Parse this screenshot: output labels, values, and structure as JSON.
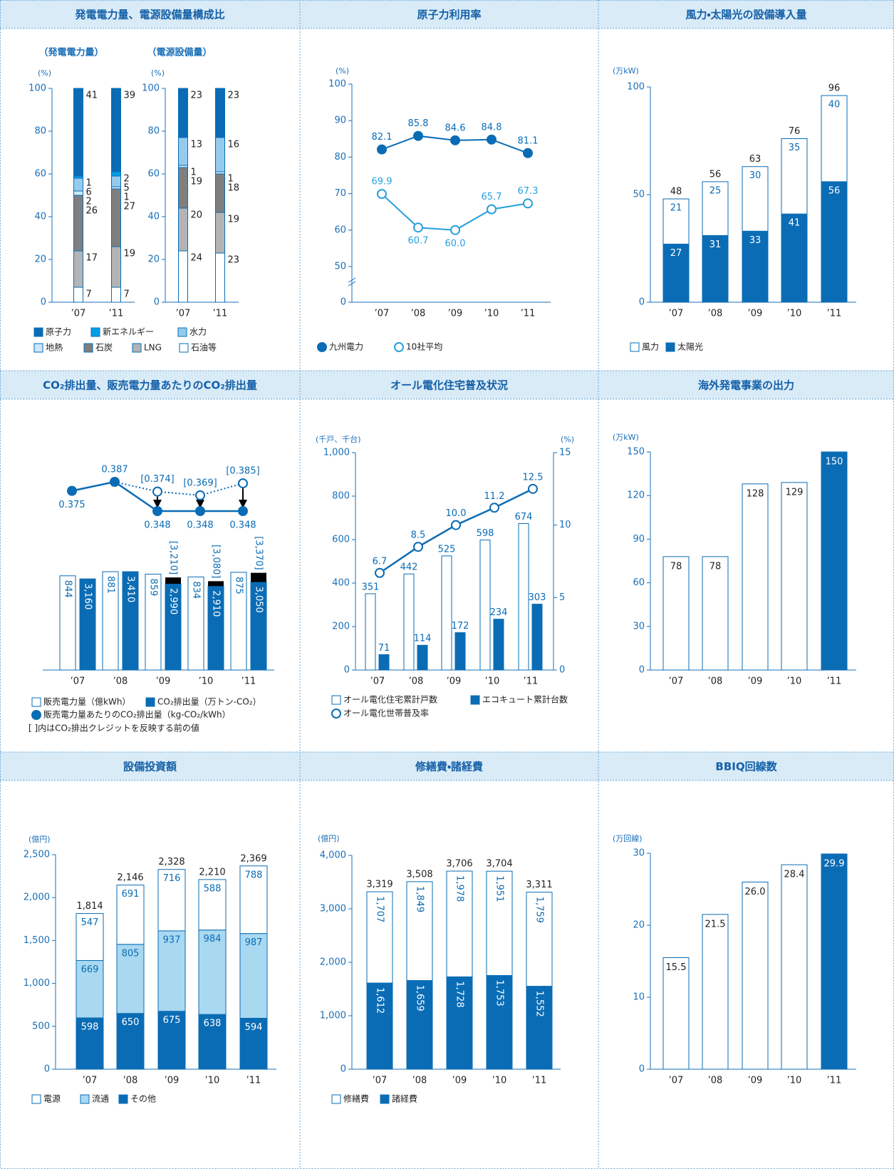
{
  "chart_data": [
    {
      "type": "stacked_bar",
      "title": "発電電力量、電源設備量構成比",
      "y_unit": "(%)",
      "ylim": [
        0,
        100
      ],
      "yticks": [
        0,
        20,
        40,
        60,
        80,
        100
      ],
      "series": [
        {
          "name": "原子力",
          "color": "#0a6cb5"
        },
        {
          "name": "新エネルギー",
          "color": "#009fe8"
        },
        {
          "name": "水力",
          "color": "#94cbed"
        },
        {
          "name": "地熱",
          "color": "#cfe6f6"
        },
        {
          "name": "石炭",
          "color": "#7f7f7f"
        },
        {
          "name": "LNG",
          "color": "#b4b4b4"
        },
        {
          "name": "石油等",
          "color": "#ffffff"
        }
      ],
      "groups": [
        {
          "label": "（発電電力量）",
          "categories": [
            "’07",
            "’11"
          ],
          "values": [
            [
              41,
              39
            ],
            [
              1,
              2
            ],
            [
              6,
              5
            ],
            [
              2,
              1
            ],
            [
              26,
              27
            ],
            [
              17,
              19
            ],
            [
              7,
              7
            ]
          ]
        },
        {
          "label": "（電源設備量）",
          "categories": [
            "’07",
            "’11"
          ],
          "values": [
            [
              23,
              23
            ],
            [
              0,
              0
            ],
            [
              13,
              16
            ],
            [
              1,
              1
            ],
            [
              19,
              18
            ],
            [
              20,
              19
            ],
            [
              24,
              23
            ]
          ]
        }
      ]
    },
    {
      "type": "line",
      "title": "原子力利用率",
      "y_unit": "(%)",
      "ylim": [
        50,
        100
      ],
      "yticks": [
        50,
        60,
        70,
        80,
        90,
        100
      ],
      "y_origin": 0,
      "categories": [
        "’07",
        "’08",
        "’09",
        "’10",
        "’11"
      ],
      "series": [
        {
          "name": "九州電力",
          "color": "#0a6cb5",
          "marker": "filled",
          "values": [
            82.1,
            85.8,
            84.6,
            84.8,
            81.1
          ]
        },
        {
          "name": "10社平均",
          "color": "#27a0dd",
          "marker": "hollow",
          "values": [
            69.9,
            60.7,
            60,
            65.7,
            67.3
          ],
          "value_labels": [
            "69.9",
            "60.7",
            "60.0",
            "65.7",
            "67.3"
          ]
        }
      ]
    },
    {
      "type": "stacked_bar",
      "title": "風力・太陽光の設備導入量",
      "y_unit": "(万kW)",
      "ylim": [
        0,
        100
      ],
      "yticks": [
        0,
        50,
        100
      ],
      "categories": [
        "’07",
        "’08",
        "’09",
        "’10",
        "’11"
      ],
      "series": [
        {
          "name": "風力",
          "color": "#ffffff",
          "values": [
            21,
            25,
            30,
            35,
            40
          ]
        },
        {
          "name": "太陽光",
          "color": "#0a6cb5",
          "values": [
            27,
            31,
            33,
            41,
            56
          ]
        }
      ],
      "totals": [
        48,
        56,
        63,
        76,
        96
      ]
    },
    {
      "type": "combo",
      "title": "CO₂排出量、販売電力量あたりのCO₂排出量",
      "categories": [
        "’07",
        "’08",
        "’09",
        "’10",
        "’11"
      ],
      "series": [
        {
          "name": "販売電力量（億kWh）",
          "color": "#ffffff",
          "values": [
            844,
            881,
            859,
            834,
            875
          ]
        },
        {
          "name": "CO₂排出量（万トン-CO₂）",
          "color": "#0a6cb5",
          "values": [
            3160,
            3410,
            2990,
            2910,
            3050
          ],
          "value_labels": [
            "3,160",
            "3,410",
            "2,990",
            "2,910",
            "3,050"
          ],
          "pre_credit": [
            null,
            null,
            3210,
            3080,
            3370
          ],
          "pre_credit_labels": [
            null,
            null,
            "[3,210]",
            "[3,080]",
            "[3,370]"
          ]
        },
        {
          "name": "販売電力量あたりのCO₂排出量（kg-CO₂/kWh）",
          "color": "#0a6cb5",
          "kind": "line",
          "marker": "filled",
          "values": [
            0.375,
            0.387,
            0.348,
            0.348,
            0.348
          ],
          "pre_credit": [
            null,
            null,
            0.374,
            0.369,
            0.385
          ],
          "pre_credit_labels": [
            null,
            null,
            "[0.374]",
            "[0.369]",
            "[0.385]"
          ]
        }
      ],
      "note": "[ ]内はCO₂排出クレジットを反映する前の値"
    },
    {
      "type": "bar_line",
      "title": "オール電化住宅普及状況",
      "y_unit": "(千戸、千台)",
      "y2_unit": "(%)",
      "ylim": [
        0,
        1000
      ],
      "yticks": [
        0,
        200,
        400,
        600,
        800,
        {
          "value": 1000,
          "label": "1,000"
        }
      ],
      "y2lim": [
        0,
        15
      ],
      "y2ticks": [
        0,
        5,
        10,
        15
      ],
      "categories": [
        "’07",
        "’08",
        "’09",
        "’10",
        "’11"
      ],
      "series": [
        {
          "name": "オール電化住宅累計戸数",
          "color": "#ffffff",
          "values": [
            351,
            442,
            525,
            598,
            674
          ]
        },
        {
          "name": "エコキュート累計台数",
          "color": "#0a6cb5",
          "values": [
            71,
            114,
            172,
            234,
            303
          ]
        },
        {
          "name": "オール電化世帯普及率",
          "color": "#0a6cb5",
          "kind": "line",
          "marker": "hollow",
          "axis": "y2",
          "values": [
            6.7,
            8.5,
            10,
            11.2,
            12.5
          ],
          "value_labels": [
            "6.7",
            "8.5",
            "10.0",
            "11.2",
            "12.5"
          ]
        }
      ]
    },
    {
      "type": "bar",
      "title": "海外発電事業の出力",
      "y_unit": "(万kW)",
      "ylim": [
        0,
        150
      ],
      "yticks": [
        0,
        30,
        60,
        90,
        120,
        150
      ],
      "categories": [
        "’07",
        "’08",
        "’09",
        "’10",
        "’11"
      ],
      "values": [
        78,
        78,
        128,
        129,
        150
      ],
      "colors": [
        "#ffffff",
        "#ffffff",
        "#ffffff",
        "#ffffff",
        "#0a6cb5"
      ]
    },
    {
      "type": "stacked_bar",
      "title": "設備投資額",
      "y_unit": "(億円)",
      "ylim": [
        0,
        2500
      ],
      "yticks": [
        0,
        500,
        {
          "value": 1000,
          "label": "1,000"
        },
        {
          "value": 1500,
          "label": "1,500"
        },
        {
          "value": 2000,
          "label": "2,000"
        },
        {
          "value": 2500,
          "label": "2,500"
        }
      ],
      "categories": [
        "’07",
        "’08",
        "’09",
        "’10",
        "’11"
      ],
      "series": [
        {
          "name": "電源",
          "color": "#ffffff",
          "values": [
            547,
            691,
            716,
            588,
            788
          ]
        },
        {
          "name": "流通",
          "color": "#a9d8f1",
          "values": [
            669,
            805,
            937,
            984,
            987
          ]
        },
        {
          "name": "その他",
          "color": "#0a6cb5",
          "values": [
            598,
            650,
            675,
            638,
            594
          ]
        }
      ],
      "totals": [
        1814,
        2146,
        2328,
        2210,
        2369
      ],
      "total_labels": [
        "1,814",
        "2,146",
        "2,328",
        "2,210",
        "2,369"
      ]
    },
    {
      "type": "stacked_bar",
      "title": "修繕費・諸経費",
      "y_unit": "(億円)",
      "ylim": [
        0,
        4000
      ],
      "yticks": [
        0,
        {
          "value": 1000,
          "label": "1,000"
        },
        {
          "value": 2000,
          "label": "2,000"
        },
        {
          "value": 3000,
          "label": "3,000"
        },
        {
          "value": 4000,
          "label": "4,000"
        }
      ],
      "categories": [
        "’07",
        "’08",
        "’09",
        "’10",
        "’11"
      ],
      "series": [
        {
          "name": "修繕費",
          "color": "#ffffff",
          "values": [
            1707,
            1849,
            1978,
            1951,
            1759
          ],
          "value_labels": [
            "1,707",
            "1,849",
            "1,978",
            "1,951",
            "1,759"
          ]
        },
        {
          "name": "諸経費",
          "color": "#0a6cb5",
          "values": [
            1612,
            1659,
            1728,
            1753,
            1552
          ],
          "value_labels": [
            "1,612",
            "1,659",
            "1,728",
            "1,753",
            "1,552"
          ]
        }
      ],
      "totals": [
        3319,
        3508,
        3706,
        3704,
        3311
      ],
      "total_labels": [
        "3,319",
        "3,508",
        "3,706",
        "3,704",
        "3,311"
      ]
    },
    {
      "type": "bar",
      "title": "BBIQ回線数",
      "y_unit": "(万回線)",
      "ylim": [
        0,
        30
      ],
      "yticks": [
        0,
        10,
        20,
        30
      ],
      "categories": [
        "’07",
        "’08",
        "’09",
        "’10",
        "’11"
      ],
      "values": [
        15.5,
        21.5,
        26,
        28.4,
        29.9
      ],
      "value_labels": [
        "15.5",
        "21.5",
        "26.0",
        "28.4",
        "29.9"
      ],
      "colors": [
        "#ffffff",
        "#ffffff",
        "#ffffff",
        "#ffffff",
        "#0a6cb5"
      ]
    }
  ]
}
